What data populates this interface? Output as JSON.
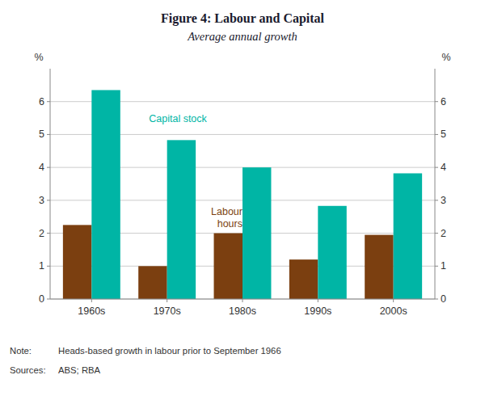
{
  "chart_data": {
    "type": "bar",
    "title": "Figure 4: Labour and Capital",
    "subtitle": "Average annual growth",
    "categories": [
      "1960s",
      "1970s",
      "1980s",
      "1990s",
      "2000s"
    ],
    "series": [
      {
        "name": "Labour\nhours",
        "color": "#7B3F10",
        "values": [
          2.25,
          1.0,
          2.0,
          1.2,
          1.95
        ]
      },
      {
        "name": "Capital stock",
        "color": "#00B5A5",
        "values": [
          6.35,
          4.83,
          4.0,
          2.83,
          3.82
        ]
      }
    ],
    "ylabel": "%",
    "y2label": "%",
    "ylim": [
      0,
      7
    ],
    "yticks": [
      0,
      1,
      2,
      3,
      4,
      5,
      6
    ],
    "y2lim": [
      0,
      7
    ],
    "y2ticks": [
      0,
      1,
      2,
      3,
      4,
      5,
      6
    ],
    "grid": true,
    "note": {
      "label": "Note:",
      "text": "Heads-based growth in labour prior to September 1966"
    },
    "sources": {
      "label": "Sources:",
      "text": "ABS; RBA"
    }
  }
}
